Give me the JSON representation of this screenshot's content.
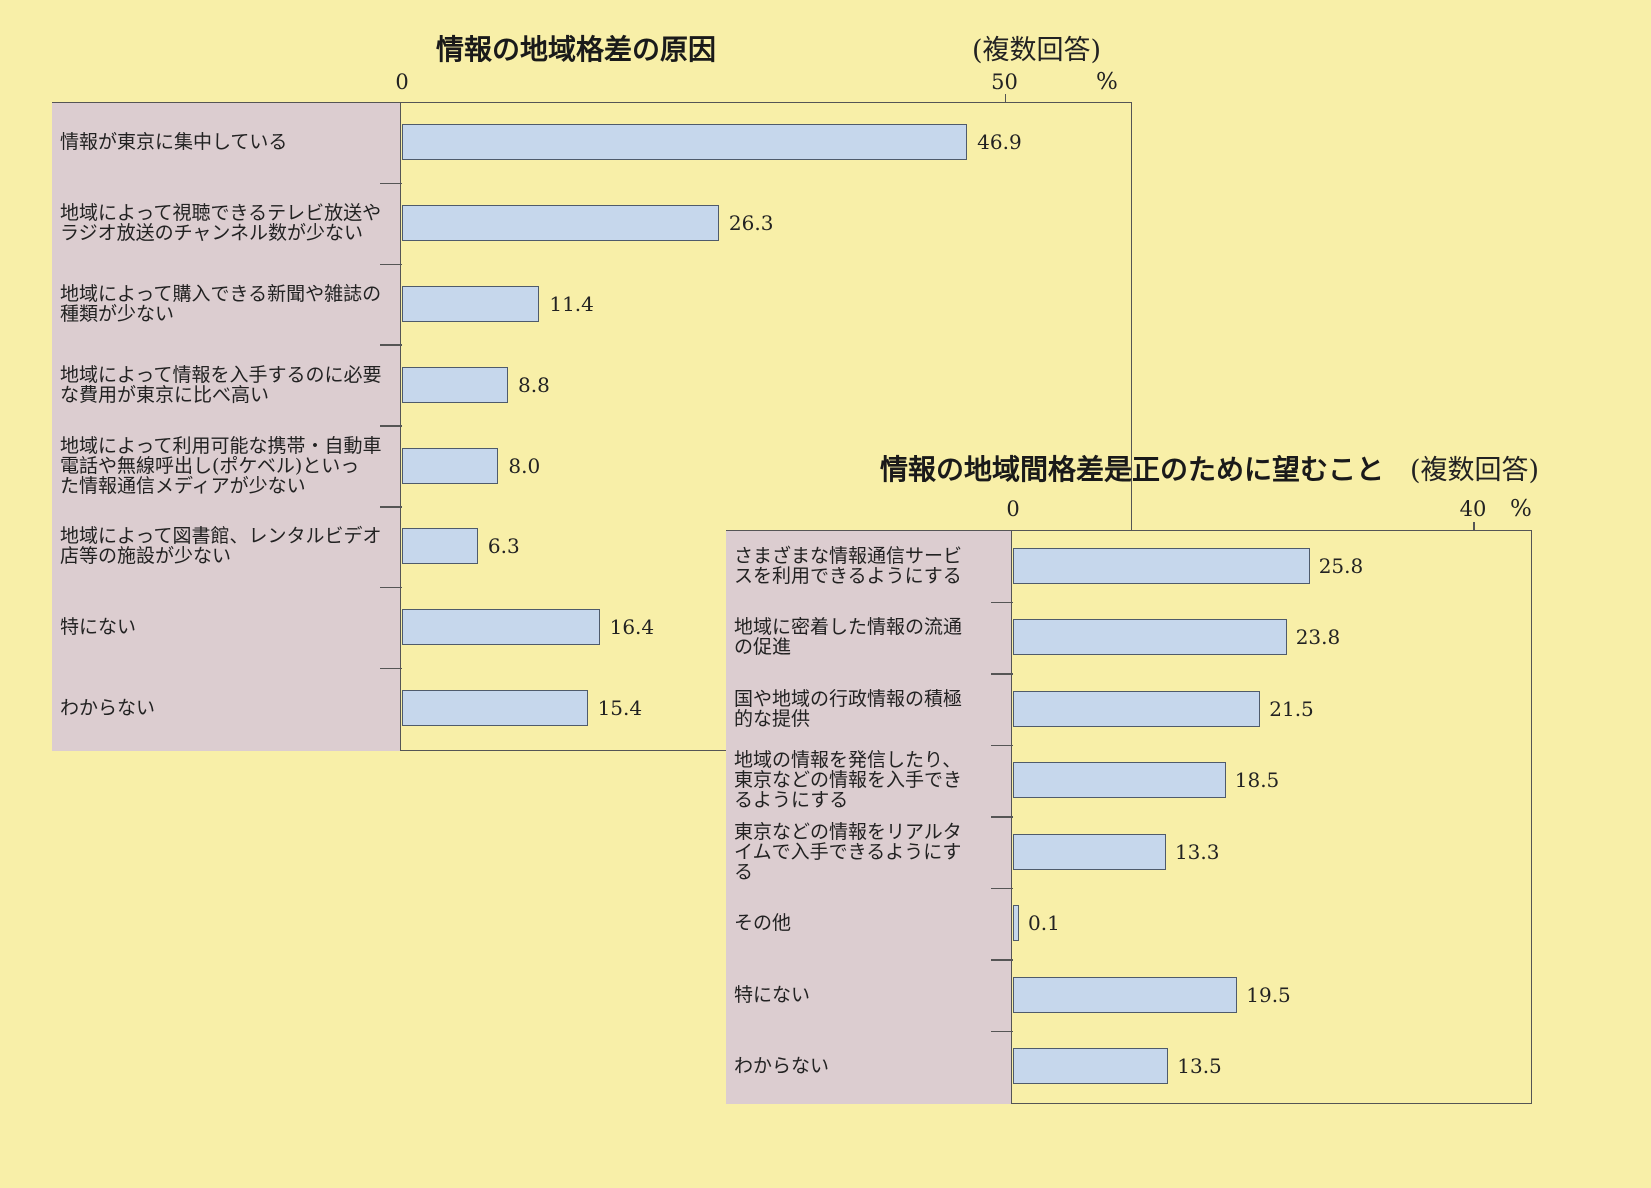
{
  "chart_data": [
    {
      "type": "bar",
      "orientation": "horizontal",
      "title": "情報の地域格差の原因",
      "note": "(複数回答)",
      "unit": "%",
      "axis_ticks": [
        "0",
        "50"
      ],
      "xlim": [
        0,
        60
      ],
      "categories": [
        "情報が東京に集中している",
        "地域によって視聴できるテレビ放送や\nラジオ放送のチャンネル数が少ない",
        "地域によって購入できる新聞や雑誌の\n種類が少ない",
        "地域によって情報を入手するのに必要\nな費用が東京に比べ高い",
        "地域によって利用可能な携帯・自動車\n電話や無線呼出し(ポケベル)といっ\nた情報通信メディアが少ない",
        "地域によって図書館、レンタルビデオ\n店等の施設が少ない",
        "特にない",
        "わからない"
      ],
      "values": [
        46.9,
        26.3,
        11.4,
        8.8,
        8.0,
        6.3,
        16.4,
        15.4
      ],
      "value_labels": [
        "46.9",
        "26.3",
        "11.4",
        "8.8",
        "8.0",
        "6.3",
        "16.4",
        "15.4"
      ],
      "bar_color": "#c6d7ec"
    },
    {
      "type": "bar",
      "orientation": "horizontal",
      "title": "情報の地域間格差是正のために望むこと",
      "note": "(複数回答)",
      "unit": "%",
      "axis_ticks": [
        "0",
        "40"
      ],
      "xlim": [
        0,
        45
      ],
      "categories": [
        "さまざまな情報通信サービ\nスを利用できるようにする",
        "地域に密着した情報の流通\nの促進",
        "国や地域の行政情報の積極\n的な提供",
        "地域の情報を発信したり、\n東京などの情報を入手でき\nるようにする",
        "東京などの情報をリアルタ\nイムで入手できるようにす\nる",
        "その他",
        "特にない",
        "わからない"
      ],
      "values": [
        25.8,
        23.8,
        21.5,
        18.5,
        13.3,
        0.1,
        19.5,
        13.5
      ],
      "value_labels": [
        "25.8",
        "23.8",
        "21.5",
        "18.5",
        "13.3",
        "0.1",
        "19.5",
        "13.5"
      ],
      "bar_color": "#c6d7ec"
    }
  ]
}
